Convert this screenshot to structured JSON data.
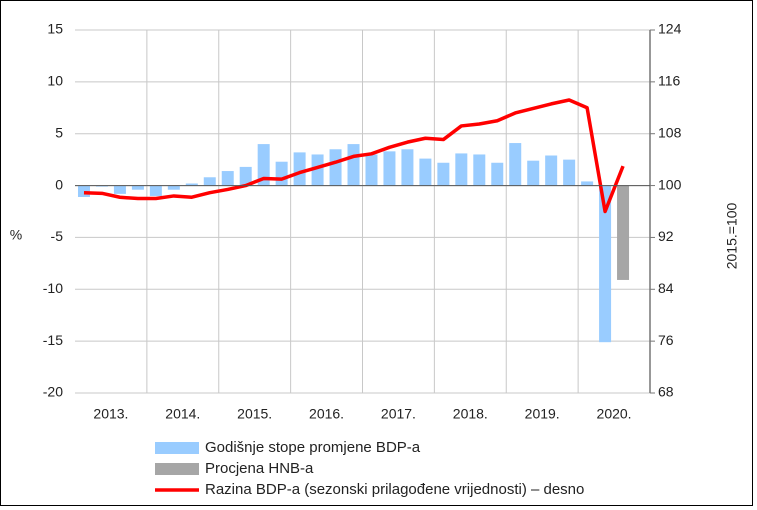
{
  "chart_data": {
    "type": "bar_line",
    "year_labels": [
      "2013.",
      "2014.",
      "2015.",
      "2016.",
      "2017.",
      "2018.",
      "2019.",
      "2020."
    ],
    "ylabel": "%",
    "y2label": "2015.=100",
    "ylim": [
      -20,
      15
    ],
    "yticks": [
      15,
      10,
      5,
      0,
      -5,
      -10,
      -15,
      -20
    ],
    "y2lim": [
      68,
      124
    ],
    "y2ticks": [
      124,
      116,
      108,
      100,
      92,
      84,
      76,
      68
    ],
    "grid": true,
    "legend": "bottom",
    "series": [
      {
        "name": "Godišnje stope promjene BDP-a",
        "type": "bar",
        "color": "#99ccff",
        "values": [
          -1.1,
          -0.1,
          -0.8,
          -0.4,
          -1.0,
          -0.4,
          0.2,
          0.8,
          1.4,
          1.8,
          4.0,
          2.3,
          3.2,
          3.0,
          3.5,
          4.0,
          3.0,
          3.3,
          3.5,
          2.6,
          2.2,
          3.1,
          3.0,
          2.2,
          4.1,
          2.4,
          2.9,
          2.5,
          0.4,
          -15.1,
          null,
          null
        ]
      },
      {
        "name": "Procjena HNB-a",
        "type": "bar",
        "color": "#a6a6a6",
        "values": [
          null,
          null,
          null,
          null,
          null,
          null,
          null,
          null,
          null,
          null,
          null,
          null,
          null,
          null,
          null,
          null,
          null,
          null,
          null,
          null,
          null,
          null,
          null,
          null,
          null,
          null,
          null,
          null,
          null,
          null,
          -9.1,
          null
        ]
      },
      {
        "name": "Razina BDP-a (sezonski prilagođene vrijednosti) – desno",
        "type": "line",
        "axis": "y2",
        "color": "#ff0000",
        "values": [
          98.9,
          98.8,
          98.2,
          98.0,
          98.0,
          98.4,
          98.2,
          98.9,
          99.4,
          100.0,
          101.1,
          101.0,
          102.0,
          102.8,
          103.6,
          104.5,
          104.9,
          105.9,
          106.7,
          107.3,
          107.1,
          109.2,
          109.5,
          110.0,
          111.2,
          111.9,
          112.6,
          113.2,
          112.0,
          96.0,
          103.0,
          null
        ]
      }
    ]
  }
}
